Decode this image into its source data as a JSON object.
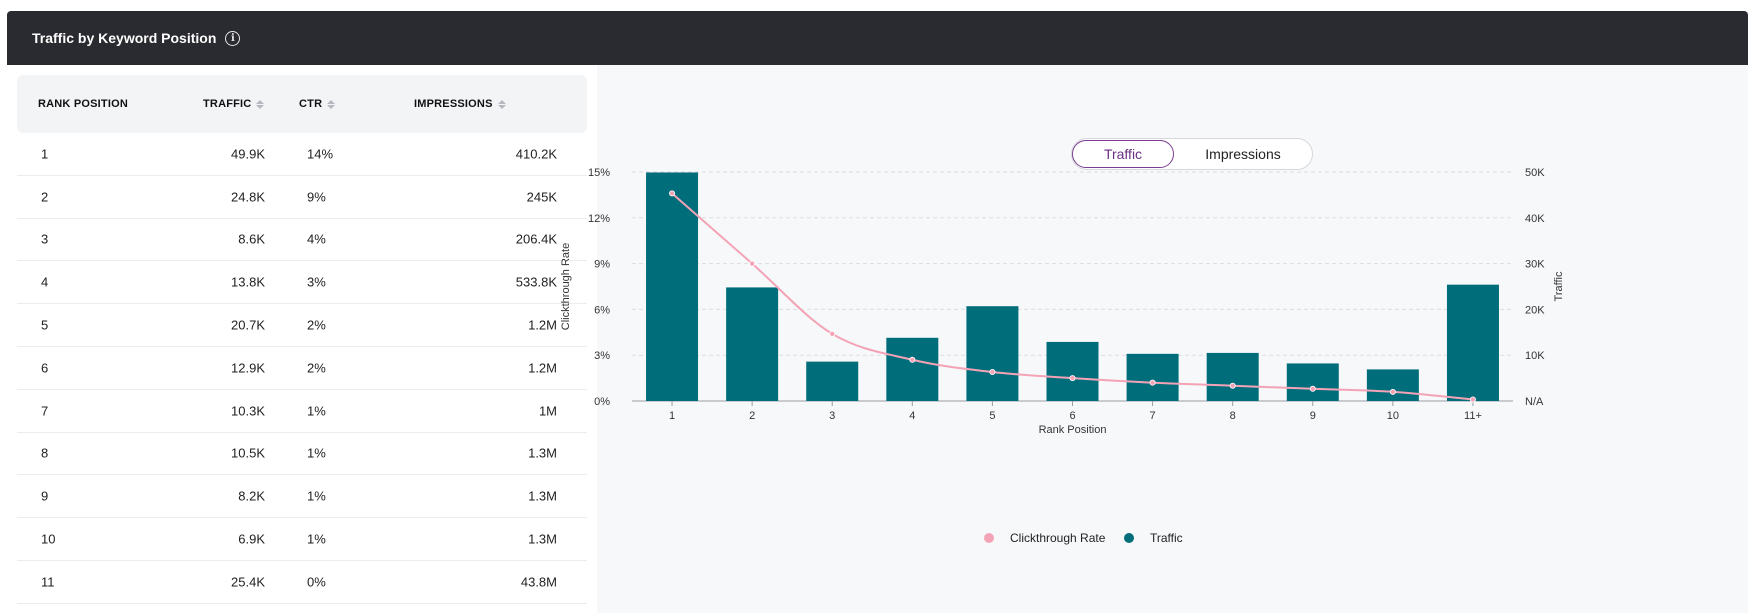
{
  "header": {
    "title": "Traffic by Keyword Position",
    "info_icon": "info-icon"
  },
  "table": {
    "columns": [
      {
        "key": "rank",
        "label": "RANK POSITION",
        "sortable": false
      },
      {
        "key": "traffic",
        "label": "TRAFFIC",
        "sortable": true
      },
      {
        "key": "ctr",
        "label": "CTR",
        "sortable": true
      },
      {
        "key": "impressions",
        "label": "IMPRESSIONS",
        "sortable": true
      }
    ],
    "rows": [
      {
        "rank": "1",
        "traffic": "49.9K",
        "ctr": "14%",
        "impressions": "410.2K"
      },
      {
        "rank": "2",
        "traffic": "24.8K",
        "ctr": "9%",
        "impressions": "245K"
      },
      {
        "rank": "3",
        "traffic": "8.6K",
        "ctr": "4%",
        "impressions": "206.4K"
      },
      {
        "rank": "4",
        "traffic": "13.8K",
        "ctr": "3%",
        "impressions": "533.8K"
      },
      {
        "rank": "5",
        "traffic": "20.7K",
        "ctr": "2%",
        "impressions": "1.2M"
      },
      {
        "rank": "6",
        "traffic": "12.9K",
        "ctr": "2%",
        "impressions": "1.2M"
      },
      {
        "rank": "7",
        "traffic": "10.3K",
        "ctr": "1%",
        "impressions": "1M"
      },
      {
        "rank": "8",
        "traffic": "10.5K",
        "ctr": "1%",
        "impressions": "1.3M"
      },
      {
        "rank": "9",
        "traffic": "8.2K",
        "ctr": "1%",
        "impressions": "1.3M"
      },
      {
        "rank": "10",
        "traffic": "6.9K",
        "ctr": "1%",
        "impressions": "1.3M"
      },
      {
        "rank": "11",
        "traffic": "25.4K",
        "ctr": "0%",
        "impressions": "43.8M"
      }
    ]
  },
  "toggle": {
    "options": [
      "Traffic",
      "Impressions"
    ],
    "selected": "Traffic"
  },
  "chart_data": {
    "type": "bar",
    "categories": [
      "1",
      "2",
      "3",
      "4",
      "5",
      "6",
      "7",
      "8",
      "9",
      "10",
      "11+"
    ],
    "xlabel": "Rank Position",
    "ylabel": "Clickthrough Rate",
    "y2label": "Traffic",
    "ylim": [
      0,
      15
    ],
    "y2lim": [
      0,
      50000
    ],
    "yticks": [
      "0%",
      "3%",
      "6%",
      "9%",
      "12%",
      "15%"
    ],
    "y2ticks": [
      "N/A",
      "10K",
      "20K",
      "30K",
      "40K",
      "50K"
    ],
    "grid": true,
    "series": [
      {
        "name": "Traffic",
        "type": "bar",
        "axis": "right",
        "color": "#006d7a",
        "values": [
          49900,
          24800,
          8600,
          13800,
          20700,
          12900,
          10300,
          10500,
          8200,
          6900,
          25400
        ]
      },
      {
        "name": "Clickthrough Rate",
        "type": "line",
        "axis": "left",
        "color": "#f4a3b6",
        "values": [
          13.6,
          9.0,
          4.4,
          2.7,
          1.9,
          1.5,
          1.2,
          1.0,
          0.8,
          0.6,
          0.1
        ]
      }
    ],
    "legend": "bottom"
  }
}
